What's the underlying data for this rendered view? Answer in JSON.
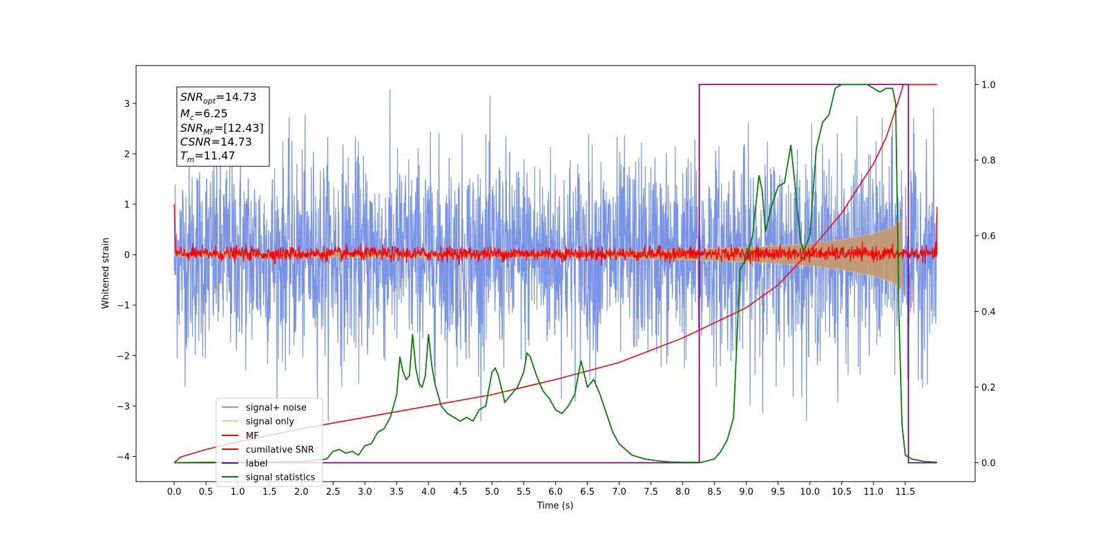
{
  "chart_data": {
    "type": "line",
    "xlabel": "Time (s)",
    "ylabel": "Whitened strain",
    "xlim": [
      -0.6,
      12.6
    ],
    "ylim": [
      -4.5,
      3.75
    ],
    "ylim_right": [
      -0.05,
      1.05
    ],
    "x_ticks": [
      0.0,
      0.5,
      1.0,
      1.5,
      2.0,
      2.5,
      3.0,
      3.5,
      4.0,
      4.5,
      5.0,
      5.5,
      6.0,
      6.5,
      7.0,
      7.5,
      8.0,
      8.5,
      9.0,
      9.5,
      10.0,
      10.5,
      11.0,
      11.5
    ],
    "x_tick_labels": [
      "0.0",
      "0.5",
      "1.0",
      "1.5",
      "2.0",
      "2.5",
      "3.0",
      "3.5",
      "4.0",
      "4.5",
      "5.0",
      "5.5",
      "6.0",
      "6.5",
      "7.0",
      "7.5",
      "8.0",
      "8.5",
      "9.0",
      "9.5",
      "10.0",
      "10.5",
      "11.0",
      "11.5"
    ],
    "y_ticks": [
      -4,
      -3,
      -2,
      -1,
      0,
      1,
      2,
      3
    ],
    "y_tick_labels": [
      "−4",
      "−3",
      "−2",
      "−1",
      "0",
      "1",
      "2",
      "3"
    ],
    "y_right_ticks": [
      0.0,
      0.2,
      0.4,
      0.6,
      0.8,
      1.0
    ],
    "y_right_tick_labels": [
      "0.0",
      "0.2",
      "0.4",
      "0.6",
      "0.8",
      "1.0"
    ],
    "grid": false,
    "legend_position": "bottom-left",
    "colors": {
      "signal_noise": "#7893e8",
      "signal_only": "#f5c97a",
      "signal_envelope_fill": "#c49a6c",
      "mf": "#ff0000",
      "cumulative_snr": "#ff0000",
      "label": "#800080",
      "signal_statistics": "#008000"
    },
    "annotation": {
      "snr_opt": "14.73",
      "mc": "6.25",
      "snr_mf": "[12.43]",
      "csnr": "14.73",
      "tm": "11.47"
    },
    "legend": [
      "signal+ noise",
      "signal only",
      "MF",
      "cumilative SNR",
      "label",
      "signal statistics"
    ],
    "series": [
      {
        "name": "signal+ noise",
        "axis": "left",
        "description_values": {
          "x_range": [
            0.0,
            12.0
          ],
          "amplitude_typical": 1.0,
          "extremes": [
            -3.3,
            3.3
          ]
        }
      },
      {
        "name": "signal only",
        "axis": "left",
        "envelope_x": [
          0.0,
          7.0,
          8.0,
          9.0,
          10.0,
          10.5,
          11.0,
          11.3,
          11.45
        ],
        "envelope_amp": [
          0.04,
          0.06,
          0.1,
          0.14,
          0.22,
          0.3,
          0.42,
          0.55,
          0.7
        ]
      },
      {
        "name": "MF",
        "axis": "left",
        "description_values": {
          "x_range": [
            0.0,
            12.0
          ],
          "amplitude_typical": 0.1,
          "edge_spikes": [
            1.0,
            0.95
          ]
        }
      },
      {
        "name": "cumilative SNR",
        "axis": "right",
        "x": [
          0.0,
          0.1,
          0.5,
          1.0,
          2.0,
          3.0,
          4.0,
          5.0,
          6.0,
          7.0,
          8.0,
          8.5,
          9.0,
          9.5,
          10.0,
          10.5,
          11.0,
          11.2,
          11.4,
          11.47,
          11.6,
          12.0
        ],
        "y": [
          0.0,
          0.015,
          0.035,
          0.055,
          0.09,
          0.12,
          0.15,
          0.18,
          0.22,
          0.265,
          0.33,
          0.37,
          0.41,
          0.47,
          0.56,
          0.66,
          0.79,
          0.86,
          0.96,
          1.0,
          1.0,
          1.0
        ]
      },
      {
        "name": "label",
        "axis": "right",
        "x": [
          0.0,
          8.26,
          8.26,
          11.55,
          11.55,
          12.0
        ],
        "y": [
          0.0,
          0.0,
          1.0,
          1.0,
          0.0,
          0.0
        ]
      },
      {
        "name": "signal statistics",
        "axis": "right",
        "x": [
          0.0,
          0.5,
          1.0,
          1.5,
          2.0,
          2.2,
          2.4,
          2.5,
          2.6,
          2.7,
          2.8,
          2.9,
          3.0,
          3.1,
          3.2,
          3.3,
          3.4,
          3.5,
          3.55,
          3.6,
          3.65,
          3.7,
          3.75,
          3.8,
          3.85,
          3.9,
          3.95,
          4.0,
          4.05,
          4.1,
          4.15,
          4.2,
          4.3,
          4.4,
          4.5,
          4.6,
          4.7,
          4.8,
          4.9,
          5.0,
          5.05,
          5.1,
          5.2,
          5.3,
          5.4,
          5.5,
          5.55,
          5.6,
          5.7,
          5.8,
          5.9,
          6.0,
          6.1,
          6.2,
          6.3,
          6.4,
          6.5,
          6.6,
          6.7,
          6.8,
          6.9,
          7.0,
          7.2,
          7.4,
          7.6,
          7.8,
          8.0,
          8.3,
          8.5,
          8.6,
          8.7,
          8.8,
          8.9,
          9.0,
          9.1,
          9.2,
          9.25,
          9.3,
          9.4,
          9.5,
          9.6,
          9.7,
          9.75,
          9.85,
          9.9,
          10.0,
          10.1,
          10.2,
          10.3,
          10.4,
          10.5,
          10.7,
          10.9,
          11.1,
          11.2,
          11.3,
          11.35,
          11.4,
          11.45,
          11.5,
          11.6,
          11.8,
          12.0
        ],
        "y": [
          0.0,
          0.001,
          0.001,
          0.002,
          0.003,
          0.006,
          0.01,
          0.03,
          0.035,
          0.025,
          0.03,
          0.02,
          0.045,
          0.05,
          0.08,
          0.09,
          0.12,
          0.18,
          0.28,
          0.24,
          0.22,
          0.23,
          0.34,
          0.25,
          0.21,
          0.2,
          0.23,
          0.34,
          0.26,
          0.21,
          0.18,
          0.15,
          0.13,
          0.12,
          0.11,
          0.12,
          0.11,
          0.14,
          0.15,
          0.24,
          0.25,
          0.23,
          0.16,
          0.18,
          0.2,
          0.24,
          0.29,
          0.28,
          0.23,
          0.19,
          0.17,
          0.14,
          0.13,
          0.15,
          0.18,
          0.27,
          0.2,
          0.22,
          0.18,
          0.13,
          0.08,
          0.05,
          0.02,
          0.01,
          0.005,
          0.002,
          0.001,
          0.001,
          0.01,
          0.03,
          0.06,
          0.12,
          0.51,
          0.54,
          0.6,
          0.76,
          0.72,
          0.61,
          0.68,
          0.73,
          0.74,
          0.84,
          0.76,
          0.59,
          0.56,
          0.6,
          0.83,
          0.9,
          0.92,
          0.99,
          1.0,
          1.0,
          1.0,
          0.98,
          0.99,
          0.99,
          0.95,
          0.4,
          0.1,
          0.02,
          0.01,
          0.003,
          0.001
        ]
      }
    ]
  }
}
